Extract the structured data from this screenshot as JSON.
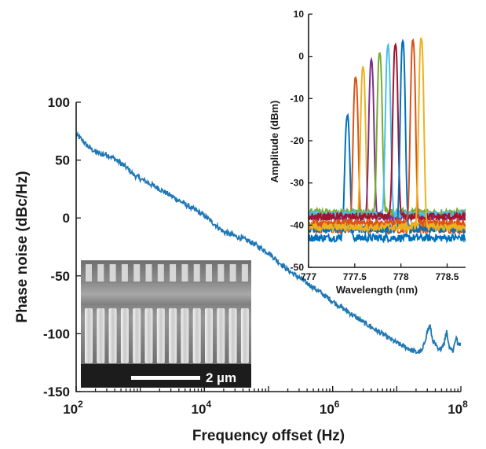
{
  "chart_data": [
    {
      "type": "line",
      "xlabel": "Frequency offset (Hz)",
      "ylabel": "Phase noise (dBc/Hz)",
      "xscale": "log",
      "xlim": [
        100,
        100000000
      ],
      "ylim": [
        -150,
        100
      ],
      "xticks": [
        {
          "value": 100,
          "base": "10",
          "exp": "2"
        },
        {
          "value": 10000,
          "base": "10",
          "exp": "4"
        },
        {
          "value": 1000000,
          "base": "10",
          "exp": "6"
        },
        {
          "value": 100000000,
          "base": "10",
          "exp": "8"
        }
      ],
      "yticks": [
        {
          "value": 100,
          "label": "100"
        },
        {
          "value": 50,
          "label": "50"
        },
        {
          "value": 0,
          "label": "0"
        },
        {
          "value": -50,
          "label": "-50"
        },
        {
          "value": -100,
          "label": "-100"
        },
        {
          "value": -150,
          "label": "-150"
        }
      ],
      "series": [
        {
          "color": "#1f77b4",
          "points": [
            [
              100,
              72
            ],
            [
              120,
              68
            ],
            [
              150,
              62
            ],
            [
              200,
              57
            ],
            [
              250,
              55
            ],
            [
              300,
              55
            ],
            [
              400,
              51
            ],
            [
              600,
              44
            ],
            [
              800,
              37
            ],
            [
              1000,
              34
            ],
            [
              2000,
              25
            ],
            [
              5000,
              12
            ],
            [
              10000,
              2
            ],
            [
              20000,
              -12
            ],
            [
              50000,
              -20
            ],
            [
              100000,
              -30
            ],
            [
              200000,
              -45
            ],
            [
              500000,
              -60
            ],
            [
              1000000,
              -72
            ],
            [
              3000000,
              -90
            ],
            [
              10000000,
              -108
            ],
            [
              20000000,
              -116
            ],
            [
              25000000,
              -115
            ],
            [
              30000000,
              -98
            ],
            [
              33000000,
              -93
            ],
            [
              36000000,
              -105
            ],
            [
              45000000,
              -115
            ],
            [
              55000000,
              -108
            ],
            [
              60000000,
              -97
            ],
            [
              65000000,
              -110
            ],
            [
              75000000,
              -115
            ],
            [
              85000000,
              -102
            ],
            [
              90000000,
              -110
            ],
            [
              100000000,
              -108
            ]
          ]
        }
      ]
    },
    {
      "type": "line",
      "xlabel": "Wavelength (nm)",
      "ylabel": "Amplitude (dBm)",
      "xlim": [
        777,
        778.7
      ],
      "ylim": [
        -50,
        10
      ],
      "xticks": [
        {
          "value": 777,
          "label": "777"
        },
        {
          "value": 777.5,
          "label": "777.5"
        },
        {
          "value": 778,
          "label": "778"
        },
        {
          "value": 778.5,
          "label": "778.5"
        }
      ],
      "yticks": [
        {
          "value": 10,
          "label": "10"
        },
        {
          "value": 0,
          "label": "0"
        },
        {
          "value": -10,
          "label": "-10"
        },
        {
          "value": -20,
          "label": "-20"
        },
        {
          "value": -30,
          "label": "-30"
        },
        {
          "value": -40,
          "label": "-40"
        },
        {
          "value": -50,
          "label": "-50"
        }
      ],
      "series": [
        {
          "color": "#0072bd",
          "center": 777.42,
          "peak": -14,
          "baseline": -43
        },
        {
          "color": "#d95319",
          "center": 777.51,
          "peak": -5,
          "baseline": -41
        },
        {
          "color": "#edb120",
          "center": 777.59,
          "peak": -2.5,
          "baseline": -40
        },
        {
          "color": "#7e2f8e",
          "center": 777.68,
          "peak": -1,
          "baseline": -38
        },
        {
          "color": "#77ac30",
          "center": 777.77,
          "peak": 1,
          "baseline": -37
        },
        {
          "color": "#4dbeee",
          "center": 777.86,
          "peak": 2.5,
          "baseline": -37.5
        },
        {
          "color": "#a2142f",
          "center": 777.94,
          "peak": 2.8,
          "baseline": -38
        },
        {
          "color": "#0072bd",
          "center": 778.02,
          "peak": 3.5,
          "baseline": -41
        },
        {
          "color": "#d95319",
          "center": 778.13,
          "peak": 4,
          "baseline": -39.5
        },
        {
          "color": "#edb120",
          "center": 778.22,
          "peak": 4.3,
          "baseline": -40.5
        }
      ]
    }
  ],
  "sem_inset": {
    "scale_bar_label": "2 µm"
  }
}
